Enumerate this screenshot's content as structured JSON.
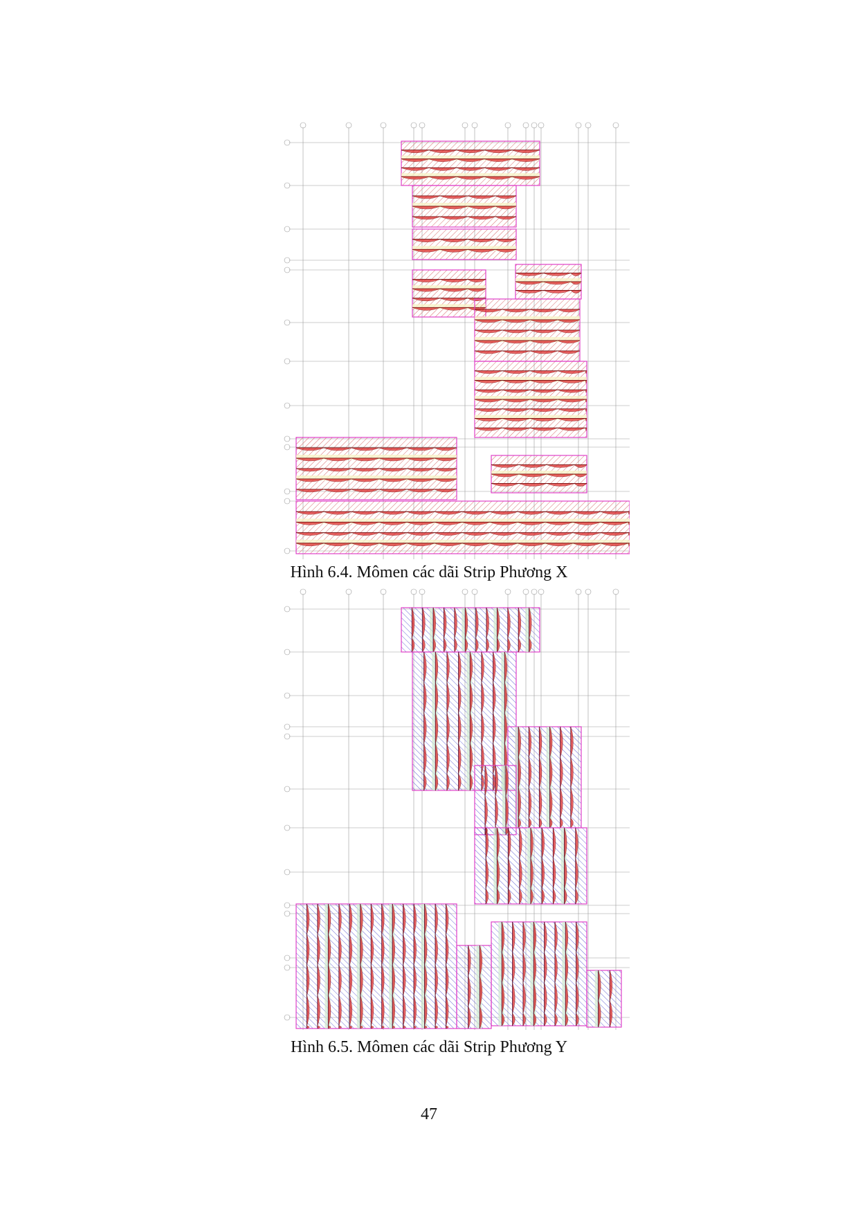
{
  "colors": {
    "strip_outline": "#e040c8",
    "x_hatch": "#d86a6a",
    "y_hatch": "#6a6ad8",
    "moment_fill": "#e03030",
    "light_band": "#f7f2c8",
    "green_band": "#cfe8cf",
    "grid": "#9a9a9a"
  },
  "figures": [
    {
      "caption": "Hình 6.4. Mômen các dãi Strip Phương X",
      "direction": "X"
    },
    {
      "caption": "Hình 6.5. Mômen các dãi Strip Phương Y",
      "direction": "Y"
    }
  ],
  "page_number": "47"
}
